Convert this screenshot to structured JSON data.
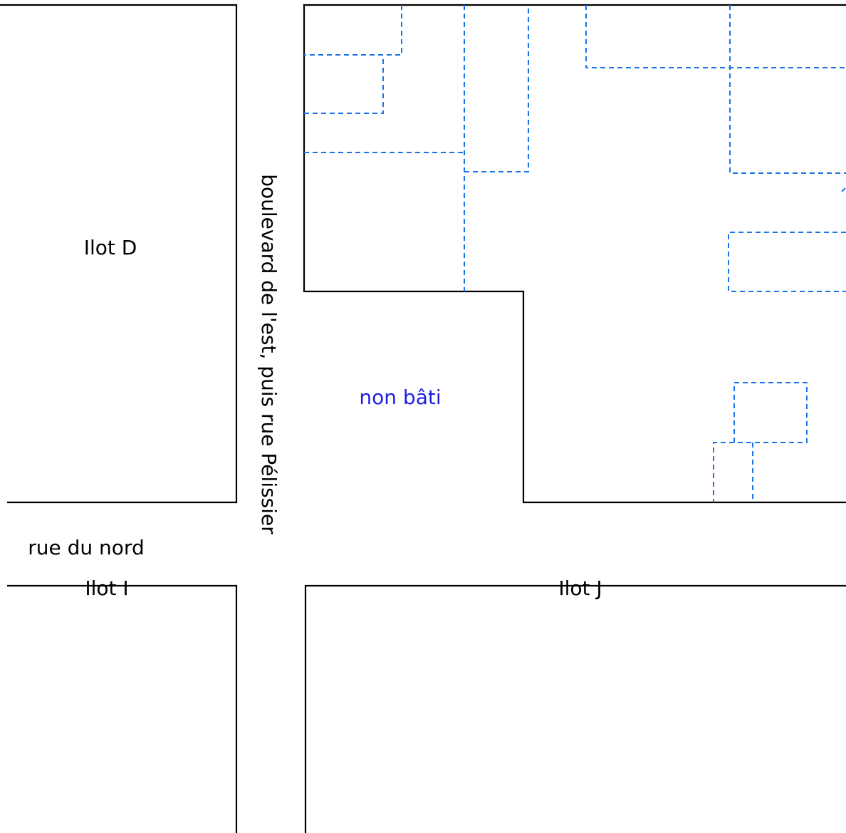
{
  "colors": {
    "block_outline": "#000000",
    "parcel_dashed": "#1a73e8",
    "label_text": "#000000",
    "unbuilt_text": "#1f1fe0",
    "background": "#ffffff"
  },
  "blocks": {
    "ilot_d": {
      "label": "Ilot D"
    },
    "ilot_i": {
      "label": "Ilot I"
    },
    "ilot_j": {
      "label": "Ilot J"
    },
    "upper_right": {
      "unbuilt_label": "non bâti"
    }
  },
  "streets": {
    "vertical": {
      "label": "boulevard de l'est, puis rue Pélissier"
    },
    "horizontal": {
      "label": "rue du nord"
    }
  }
}
